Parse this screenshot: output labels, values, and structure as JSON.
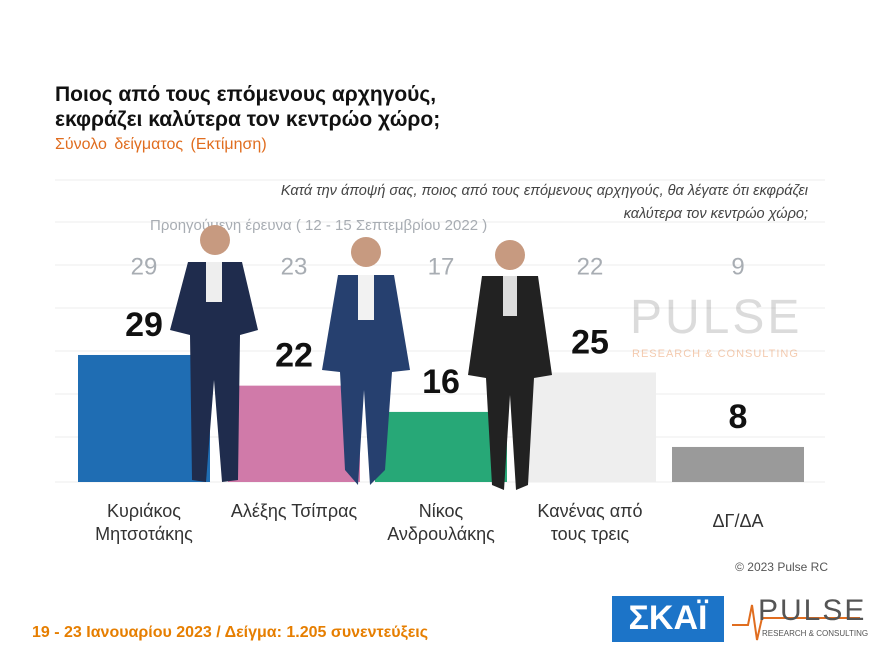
{
  "chart_data": {
    "type": "bar",
    "title": "Ποιος από τους επόμενους αρχηγούς, εκφράζει καλύτερα τον κεντρώο χώρο;",
    "subtitle": "Σύνολο δείγματος (Εκτίμηση)",
    "question": "Κατά την άποψή σας, ποιος από τους επόμενους αρχηγούς, θα λέγατε ότι εκφράζει καλύτερα τον κεντρώο χώρο;",
    "categories": [
      "Κυριάκος Μητσοτάκης",
      "Αλέξης Τσίπρας",
      "Νίκος Ανδρουλάκης",
      "Κανένας από τους τρεις",
      "ΔΓ/ΔΑ"
    ],
    "values": [
      29,
      22,
      16,
      25,
      8
    ],
    "colors": [
      "#1f6db3",
      "#d07aa9",
      "#27a877",
      "#eeeeee",
      "#9a9a9a"
    ],
    "previous": {
      "name": "Προηγούμενη έρευνα ( 12 - 15 Σεπτεμβρίου 2022 )",
      "color": "#a8adb3",
      "values": [
        29,
        23,
        17,
        22,
        9
      ]
    },
    "footer": "19 - 23 Ιανουαρίου 2023 / Δείγμα: 1.205 συνεντεύξεις",
    "copyright": "© 2023 Pulse RC",
    "logos": {
      "skai": "ΣΚΑΪ",
      "pulse": "PULSE",
      "pulse_tagline": "RESEARCH & CONSULTING"
    }
  }
}
